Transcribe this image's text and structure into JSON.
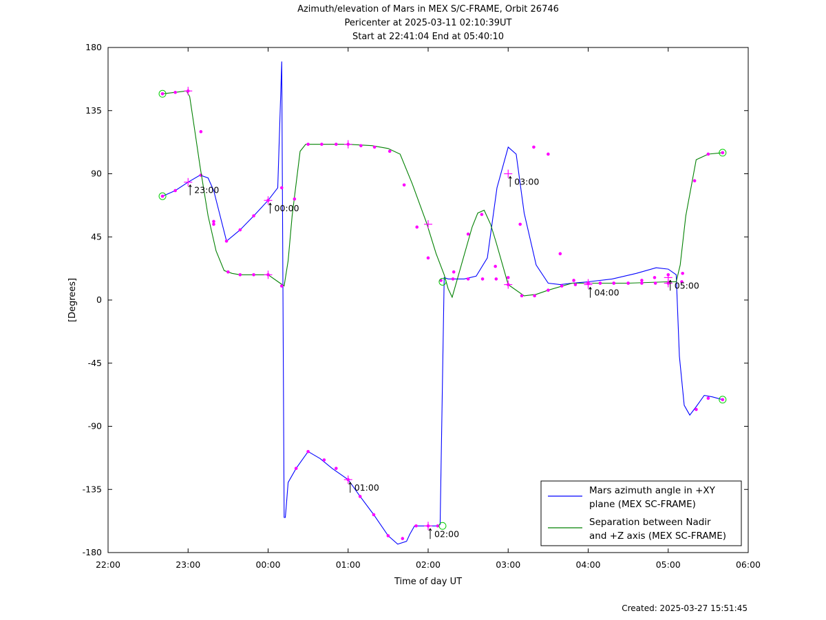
{
  "chart_data": {
    "type": "line",
    "title": [
      "Azimuth/elevation of Mars in MEX S/C-FRAME,  Orbit 26746",
      "Pericenter at 2025-03-11 02:10:39UT",
      "Start at 22:41:04 End at 05:40:10"
    ],
    "xlabel": "Time of day UT",
    "ylabel": "[Degrees]",
    "x_unit": "hours since 22:00 UT",
    "xlim": [
      0,
      8
    ],
    "ylim": [
      -180,
      180
    ],
    "x_ticks": [
      0,
      1,
      2,
      3,
      4,
      5,
      6,
      7,
      8
    ],
    "x_tick_labels": [
      "22:00",
      "23:00",
      "00:00",
      "01:00",
      "02:00",
      "03:00",
      "04:00",
      "05:00",
      "06:00"
    ],
    "y_ticks": [
      -180,
      -135,
      -90,
      -45,
      0,
      45,
      90,
      135,
      180
    ],
    "y_tick_labels": [
      "-180",
      "-135",
      "-90",
      "-45",
      "0",
      "45",
      "90",
      "135",
      "180"
    ],
    "grid": false,
    "legend_position": "bottom-right",
    "series": [
      {
        "name": "Mars azimuth angle in +XY plane (MEX SC-FRAME)",
        "legend_lines": [
          "Mars azimuth angle in +XY",
          "plane (MEX SC-FRAME)"
        ],
        "color": "#0000ff",
        "x": [
          0.68,
          0.84,
          1.0,
          1.15,
          1.25,
          1.32,
          1.48,
          1.65,
          1.82,
          2.0,
          2.12,
          2.17,
          2.2,
          2.215,
          2.23,
          2.25,
          2.35,
          2.5,
          2.65,
          2.8,
          3.0,
          3.15,
          3.32,
          3.5,
          3.62,
          3.73,
          3.77,
          3.83,
          3.88,
          4.0,
          4.12,
          4.15,
          4.2,
          4.25,
          4.33,
          4.45,
          4.6,
          4.74,
          4.86,
          5.0,
          5.1,
          5.2,
          5.35,
          5.5,
          5.65,
          5.8,
          6.0,
          6.3,
          6.6,
          6.85,
          7.0,
          7.1,
          7.14,
          7.2,
          7.27,
          7.35,
          7.45,
          7.55,
          7.68
        ],
        "y": [
          74,
          78,
          84,
          89,
          87,
          78,
          42,
          50,
          60,
          71,
          80,
          170,
          -155,
          -155,
          -145,
          -130,
          -120,
          -108,
          -113,
          -120,
          -128,
          -140,
          -153,
          -168,
          -174,
          -172,
          -167,
          -161,
          -161,
          -161,
          -161,
          -160,
          16,
          15,
          15,
          15,
          17,
          30,
          80,
          109,
          104,
          62,
          25,
          12,
          11,
          12,
          13,
          15,
          19,
          23,
          22,
          18,
          -40,
          -75,
          -82,
          -76,
          -68,
          -69,
          -71
        ],
        "markers_x": [
          0.68,
          0.84,
          1.16,
          1.32,
          1.48,
          1.65,
          1.82,
          2.0,
          2.17,
          2.35,
          2.5,
          2.7,
          2.85,
          3.0,
          3.15,
          3.32,
          3.5,
          3.68,
          3.85,
          4.0,
          4.12,
          4.31,
          4.5,
          4.68,
          4.85,
          5.0,
          5.15,
          5.32,
          5.5,
          5.65,
          5.82,
          6.0,
          6.15,
          6.32,
          6.5,
          6.67,
          6.83,
          7.0,
          7.18,
          7.35,
          7.5,
          7.68
        ],
        "markers_y": [
          74,
          78,
          89,
          54,
          42,
          50,
          60,
          71,
          80,
          -120,
          -108,
          -114,
          -120,
          -128,
          -140,
          -153,
          -168,
          -170,
          -161,
          -161,
          -161,
          15,
          15,
          15,
          15,
          16,
          54,
          109,
          104,
          33,
          14,
          12,
          12,
          12,
          12,
          14,
          16,
          18,
          19,
          -78,
          -70,
          -71
        ],
        "hour_labels": [
          {
            "x": 1.0,
            "y": 84,
            "label": "23:00"
          },
          {
            "x": 2.0,
            "y": 71,
            "label": "00:00"
          },
          {
            "x": 3.0,
            "y": -128,
            "label": "01:00"
          },
          {
            "x": 4.0,
            "y": -161,
            "label": "02:00"
          },
          {
            "x": 5.0,
            "y": 90,
            "label": "03:00"
          },
          {
            "x": 6.0,
            "y": 11,
            "label": "04:00"
          },
          {
            "x": 7.0,
            "y": 16,
            "label": "05:00"
          }
        ],
        "start": {
          "x": 0.68,
          "y": 74
        },
        "end": {
          "x": 7.68,
          "y": -71
        },
        "pericenter": {
          "x": 4.18,
          "y": -161
        }
      },
      {
        "name": "Separation between Nadir and +Z axis (MEX SC-FRAME)",
        "legend_lines": [
          "Separation between Nadir",
          "and +Z axis (MEX SC-FRAME)"
        ],
        "color": "#008000",
        "x": [
          0.68,
          0.84,
          0.98,
          1.02,
          1.08,
          1.15,
          1.25,
          1.35,
          1.45,
          1.55,
          1.65,
          1.8,
          2.0,
          2.15,
          2.2,
          2.25,
          2.3,
          2.4,
          2.47,
          2.55,
          2.65,
          3.0,
          3.3,
          3.5,
          3.65,
          3.8,
          3.98,
          4.1,
          4.2,
          4.25,
          4.3,
          4.5,
          4.55,
          4.62,
          4.7,
          4.78,
          4.85,
          5.0,
          5.2,
          5.35,
          5.5,
          5.8,
          6.0,
          6.5,
          7.0,
          7.1,
          7.15,
          7.22,
          7.35,
          7.5,
          7.68
        ],
        "y": [
          147,
          148,
          149,
          145,
          122,
          95,
          60,
          35,
          21,
          19,
          18,
          18,
          18,
          12,
          10,
          28,
          60,
          106,
          111,
          111,
          111,
          111,
          110,
          108,
          104,
          83,
          55,
          33,
          18,
          8,
          2,
          42,
          52,
          62,
          64,
          54,
          41,
          11,
          3,
          4,
          7,
          12,
          12,
          12,
          13,
          13,
          25,
          60,
          100,
          104,
          105
        ],
        "markers_x": [
          0.68,
          0.84,
          1.0,
          1.16,
          1.32,
          1.5,
          1.65,
          1.82,
          2.0,
          2.17,
          2.33,
          2.5,
          2.67,
          2.85,
          3.0,
          3.16,
          3.33,
          3.52,
          3.7,
          3.86,
          4.0,
          4.16,
          4.32,
          4.5,
          4.67,
          4.84,
          5.0,
          5.17,
          5.33,
          5.5,
          5.67,
          5.84,
          6.0,
          6.15,
          6.32,
          6.5,
          6.67,
          6.84,
          7.0,
          7.17,
          7.33,
          7.5,
          7.68
        ],
        "markers_y": [
          147,
          148,
          149,
          120,
          56,
          20,
          18,
          18,
          18,
          10,
          72,
          111,
          111,
          111,
          111,
          110,
          109,
          106,
          82,
          52,
          30,
          14,
          20,
          47,
          61,
          24,
          11,
          3,
          3,
          7,
          10,
          11,
          12,
          12,
          12,
          12,
          12,
          12,
          12,
          13,
          85,
          104,
          105
        ],
        "hour_labels": [
          {
            "x": 1.0,
            "y": 149,
            "label": "23:00"
          },
          {
            "x": 2.0,
            "y": 18,
            "label": "00:00"
          },
          {
            "x": 3.0,
            "y": 111,
            "label": "01:00"
          },
          {
            "x": 4.0,
            "y": 54,
            "label": "02:00"
          },
          {
            "x": 5.0,
            "y": 11,
            "label": "03:00"
          },
          {
            "x": 6.0,
            "y": 12,
            "label": "04:00"
          },
          {
            "x": 7.0,
            "y": 12,
            "label": "05:00"
          }
        ],
        "start": {
          "x": 0.68,
          "y": 147
        },
        "end": {
          "x": 7.68,
          "y": 105
        },
        "pericenter": {
          "x": 4.18,
          "y": 13
        }
      }
    ],
    "hour_tags": [
      {
        "x": 1.0,
        "y": 84,
        "label": "23:00"
      },
      {
        "x": 2.0,
        "y": 71,
        "label": "00:00"
      },
      {
        "x": 3.0,
        "y": -128,
        "label": "01:00"
      },
      {
        "x": 4.0,
        "y": -161,
        "label": "02:00"
      },
      {
        "x": 5.0,
        "y": 90,
        "label": "03:00"
      },
      {
        "x": 6.0,
        "y": 11,
        "label": "04:00"
      },
      {
        "x": 7.0,
        "y": 16,
        "label": "05:00"
      }
    ],
    "colors": {
      "marker": "#ff00ff",
      "endpoint": "#00cc00"
    }
  },
  "footer": {
    "created": "Created: 2025-03-27 15:51:45"
  }
}
